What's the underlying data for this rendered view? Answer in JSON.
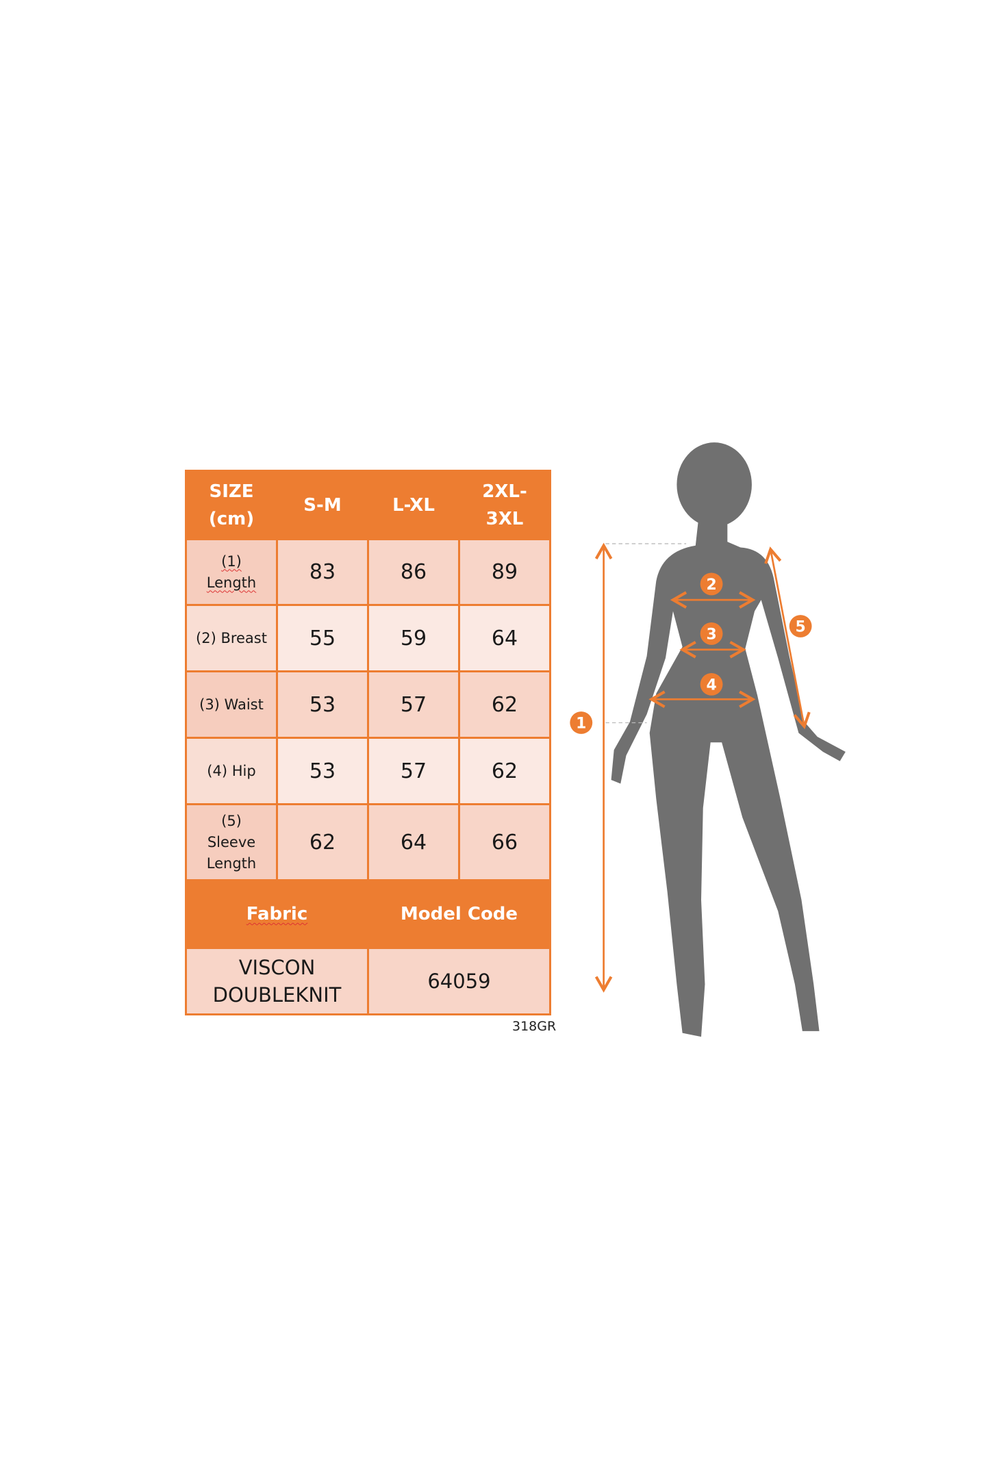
{
  "table": {
    "header": [
      "SIZE\n(cm)",
      "S-M",
      "L-XL",
      "2XL-\n3XL"
    ],
    "rows": [
      {
        "label": "(1)\nLength",
        "values": [
          "83",
          "86",
          "89"
        ]
      },
      {
        "label": "(2) Breast",
        "values": [
          "55",
          "59",
          "64"
        ]
      },
      {
        "label": "(3) Waist",
        "values": [
          "53",
          "57",
          "62"
        ]
      },
      {
        "label": "(4) Hip",
        "values": [
          "53",
          "57",
          "62"
        ]
      },
      {
        "label": "(5)\nSleeve\nLength",
        "values": [
          "62",
          "64",
          "66"
        ]
      }
    ],
    "footer_headers": [
      "Fabric",
      "Model Code"
    ],
    "footer_values": [
      "VISCON\nDOUBLEKNIT",
      "64059"
    ]
  },
  "code_tag": "318GR",
  "figure": {
    "markers": [
      "1",
      "2",
      "3",
      "4",
      "5"
    ],
    "colors": {
      "accent": "#ED7D31",
      "silhouette": "#707070",
      "cell": "#F8D5C8",
      "cell_light": "#FBE9E3"
    }
  }
}
